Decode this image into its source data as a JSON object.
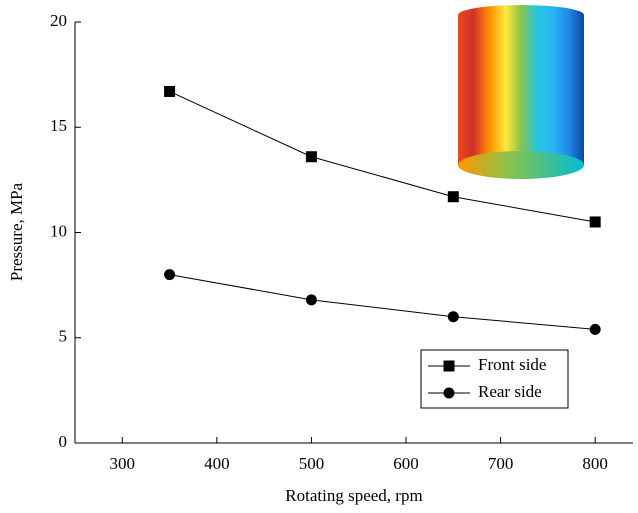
{
  "chart_data": {
    "type": "line",
    "x_label": "Rotating speed, rpm",
    "y_label": "Pressure, MPa",
    "xlim": [
      250,
      840
    ],
    "xticks": [
      300,
      400,
      500,
      600,
      700,
      800
    ],
    "ylim": [
      0,
      20
    ],
    "yticks": [
      0,
      5,
      10,
      15,
      20
    ],
    "x": [
      350,
      500,
      650,
      800
    ],
    "series": [
      {
        "name": "Front side",
        "color": "#000000",
        "marker": "square",
        "values": [
          16.7,
          13.6,
          11.7,
          10.5
        ]
      },
      {
        "name": "Rear side",
        "color": "#000000",
        "marker": "circle",
        "values": [
          8.0,
          6.8,
          6.0,
          5.4
        ]
      }
    ],
    "legend": "lower right"
  }
}
